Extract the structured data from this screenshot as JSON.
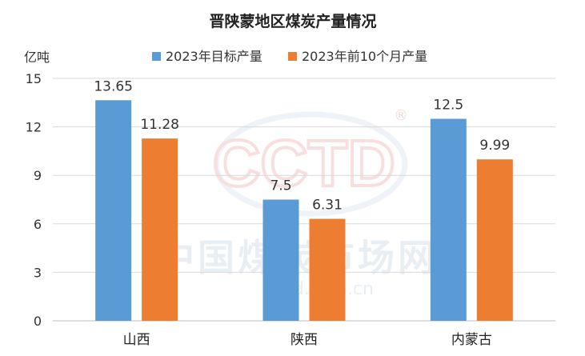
{
  "chart_data": {
    "type": "bar",
    "title": "晋陕蒙地区煤炭产量情况",
    "ylabel": "亿吨",
    "xlabel": "",
    "categories": [
      "山西",
      "陕西",
      "内蒙古"
    ],
    "series": [
      {
        "name": "2023年目标产量",
        "values": [
          13.65,
          7.5,
          12.5
        ],
        "color": "#5b9bd5"
      },
      {
        "name": "2023年前10个月产量",
        "values": [
          11.28,
          6.31,
          9.99
        ],
        "color": "#ed7d31"
      }
    ],
    "ylim": [
      0,
      15
    ],
    "yticks": [
      0,
      3,
      6,
      9,
      12,
      15
    ],
    "grid": true,
    "legend": "top-center"
  },
  "watermark": {
    "logo": "CCTD",
    "registered": "®",
    "site": "中国煤炭市场网",
    "url": "cctd.com.cn"
  }
}
